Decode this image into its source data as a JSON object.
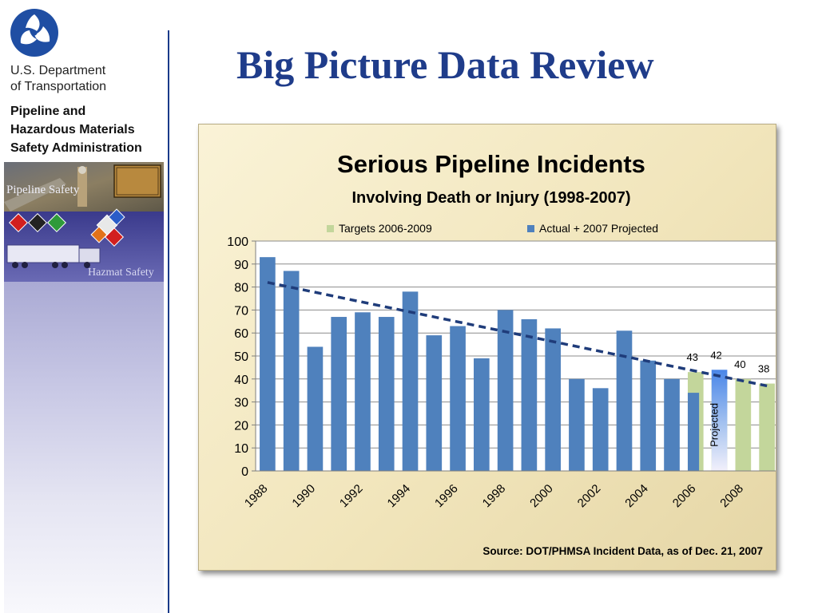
{
  "slide": {
    "title": "Big Picture Data Review"
  },
  "sidebar": {
    "agency_line1": "U.S. Department",
    "agency_line2": "of Transportation",
    "admin_line1": "Pipeline and",
    "admin_line2": "Hazardous Materials",
    "admin_line3": "Safety Administration",
    "photo_label_top": "Pipeline Safety",
    "photo_label_bottom": "Hazmat Safety"
  },
  "chart_data": {
    "type": "bar",
    "title": "Serious Pipeline Incidents",
    "subtitle": "Involving Death or Injury (1998-2007)",
    "source": "Source:  DOT/PHMSA Incident Data, as of Dec. 21, 2007",
    "xlabel": "",
    "ylabel": "",
    "ylim": [
      0,
      100
    ],
    "yticks": [
      0,
      10,
      20,
      30,
      40,
      50,
      60,
      70,
      80,
      90,
      100
    ],
    "grid": true,
    "legend_position": "top",
    "categories": [
      "1988",
      "1989",
      "1990",
      "1991",
      "1992",
      "1993",
      "1994",
      "1995",
      "1996",
      "1997",
      "1998",
      "1999",
      "2000",
      "2001",
      "2002",
      "2003",
      "2004",
      "2005",
      "2006",
      "2007",
      "2008",
      "2009"
    ],
    "x_tick_labels": [
      "1988",
      "1990",
      "1992",
      "1994",
      "1996",
      "1998",
      "2000",
      "2002",
      "2004",
      "2006",
      "2008"
    ],
    "series": [
      {
        "name": "Actual + 2007  Projected",
        "color": "#4f81bd",
        "values": [
          93,
          87,
          54,
          67,
          69,
          67,
          78,
          59,
          63,
          49,
          70,
          66,
          62,
          40,
          36,
          61,
          48,
          40,
          34,
          44,
          null,
          null
        ]
      },
      {
        "name": "Targets 2006-2009",
        "color": "#c3d69b",
        "values": [
          null,
          null,
          null,
          null,
          null,
          null,
          null,
          null,
          null,
          null,
          null,
          null,
          null,
          null,
          null,
          null,
          null,
          null,
          43,
          42,
          40,
          38
        ]
      }
    ],
    "data_labels": [
      {
        "category": "2006",
        "text": "43"
      },
      {
        "category": "2007",
        "text": "42"
      },
      {
        "category": "2008",
        "text": "40"
      },
      {
        "category": "2009",
        "text": "38"
      }
    ],
    "annotation": {
      "category": "2007",
      "text": "Projected"
    },
    "trendline": {
      "style": "dashed",
      "color": "#1f3c7a",
      "start": {
        "x": "1988",
        "y": 82
      },
      "end": {
        "x": "2009",
        "y": 37
      }
    }
  }
}
